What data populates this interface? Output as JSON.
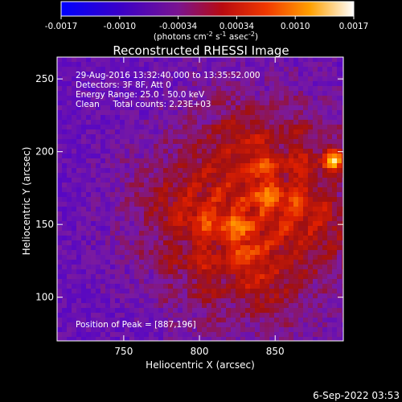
{
  "colorbar": {
    "ticks": [
      "-0.0017",
      "-0.0010",
      "-0.00034",
      "0.00034",
      "0.0010",
      "0.0017"
    ],
    "unit_label_parts": [
      "(photons cm",
      "-2",
      " s",
      "-1",
      " asec",
      "-2",
      ")"
    ]
  },
  "chart_data": {
    "type": "heatmap",
    "title": "Reconstructed RHESSI Image",
    "xlabel": "Heliocentric X (arcsec)",
    "ylabel": "Heliocentric Y (arcsec)",
    "xlim": [
      706,
      895
    ],
    "ylim": [
      70,
      265
    ],
    "xticks": [
      750,
      800,
      850
    ],
    "yticks": [
      100,
      150,
      200,
      250
    ],
    "info_lines": [
      "29-Aug-2016 13:32:40.000 to 13:35:52.000",
      "Detectors: 3F 8F, Att 0",
      "Energy Range: 25.0 - 50.0 keV",
      "Clean     Total counts: 2.23E+03"
    ],
    "peak_label": "Position of Peak = [887,196]",
    "peak": [
      887,
      196
    ],
    "value_range": [
      -0.0017,
      0.0017
    ],
    "colormap": [
      "#0000ff",
      "#4a00d0",
      "#7a1aa0",
      "#a01010",
      "#e02000",
      "#ff7a00",
      "#ffd000",
      "#ffffff"
    ]
  },
  "footer_date": "6-Sep-2022 03:53"
}
